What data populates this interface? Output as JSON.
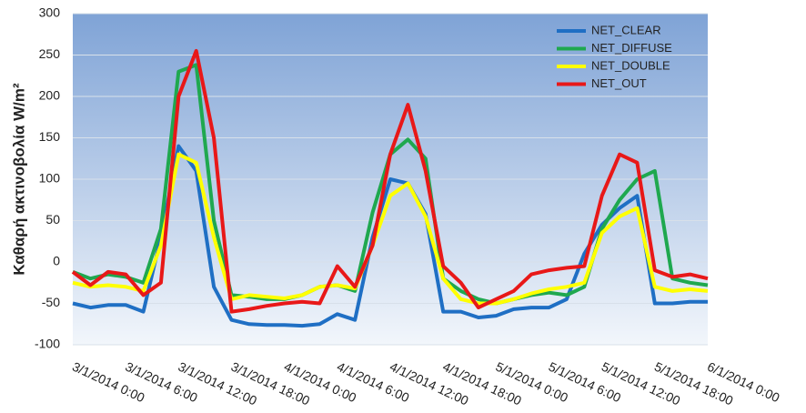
{
  "chart_data": {
    "type": "line",
    "y_label": "Καθαρή ακτινοβολία W/m²",
    "categories": [
      "3/1/2014 0:00",
      null,
      null,
      "3/1/2014 6:00",
      null,
      null,
      "3/1/2014 12:00",
      null,
      null,
      "3/1/2014 18:00",
      null,
      null,
      "4/1/2014 0:00",
      null,
      null,
      "4/1/2014 6:00",
      null,
      null,
      "4/1/2014 12:00",
      null,
      null,
      "4/1/2014 18:00",
      null,
      null,
      "5/1/2014 0:00",
      null,
      null,
      "5/1/2014 6:00",
      null,
      null,
      "5/1/2014 12:00",
      null,
      null,
      "5/1/2014 18:00",
      null,
      null,
      "6/1/2014 0:00"
    ],
    "series": [
      {
        "name": "NET_CLEAR",
        "color": "#1f6fc4",
        "values": [
          -50,
          -55,
          -52,
          -52,
          -60,
          30,
          140,
          110,
          -30,
          -70,
          -75,
          -76,
          -76,
          -77,
          -75,
          -63,
          -70,
          30,
          100,
          95,
          58,
          -60,
          -60,
          -67,
          -65,
          -57,
          -55,
          -55,
          -45,
          10,
          45,
          65,
          80,
          -50,
          -50,
          -48,
          -48
        ]
      },
      {
        "name": "NET_DIFFUSE",
        "color": "#1fa84f",
        "values": [
          -12,
          -20,
          -15,
          -18,
          -25,
          40,
          230,
          238,
          50,
          -40,
          -42,
          -45,
          -45,
          -40,
          -30,
          -28,
          -35,
          60,
          130,
          148,
          125,
          -20,
          -35,
          -45,
          -50,
          -45,
          -40,
          -37,
          -40,
          -30,
          40,
          75,
          100,
          110,
          -20,
          -25,
          -28
        ]
      },
      {
        "name": "NET_DOUBLE",
        "color": "#ffff00",
        "values": [
          -25,
          -30,
          -28,
          -30,
          -35,
          20,
          130,
          120,
          30,
          -45,
          -40,
          -42,
          -44,
          -40,
          -30,
          -28,
          -32,
          20,
          80,
          95,
          55,
          -20,
          -45,
          -50,
          -50,
          -45,
          -38,
          -33,
          -30,
          -25,
          35,
          55,
          65,
          -30,
          -35,
          -33,
          -35
        ]
      },
      {
        "name": "NET_OUT",
        "color": "#e81818",
        "values": [
          -12,
          -28,
          -12,
          -15,
          -40,
          -25,
          200,
          255,
          150,
          -60,
          -57,
          -53,
          -50,
          -48,
          -50,
          -5,
          -30,
          20,
          130,
          190,
          110,
          -5,
          -25,
          -55,
          -45,
          -35,
          -15,
          -10,
          -7,
          -5,
          80,
          130,
          120,
          -10,
          -18,
          -15,
          -20
        ]
      }
    ],
    "ylim": [
      -100,
      300
    ],
    "yticks": [
      -100,
      -50,
      0,
      50,
      100,
      150,
      200,
      250,
      300
    ],
    "grid": true,
    "legend": "top-right"
  }
}
